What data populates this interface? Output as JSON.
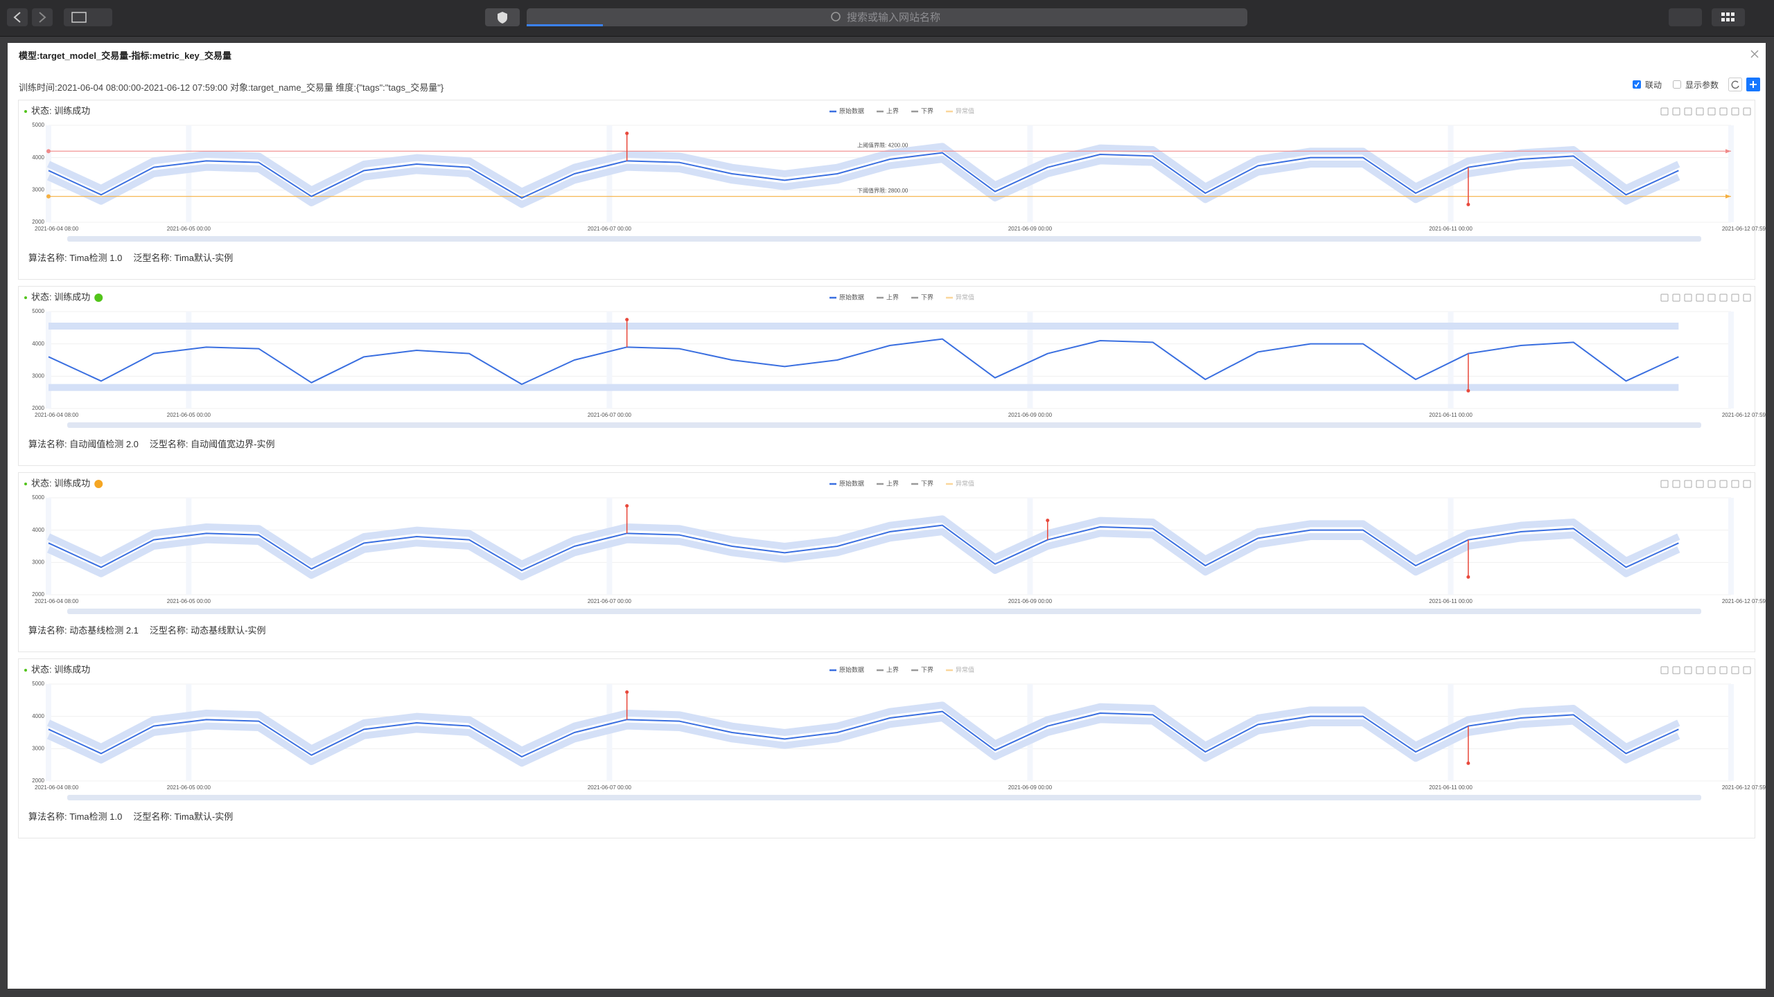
{
  "browser": {
    "search_placeholder": "搜索或输入网站名称"
  },
  "modal": {
    "title": "模型:target_model_交易量-指标:metric_key_交易量",
    "info": "训练时间:2021-06-04 08:00:00-2021-06-12 07:59:00 对象:target_name_交易量 维度:{\"tags\":\"tags_交易量\"}",
    "link_label": "联动",
    "show_params_label": "显示参数"
  },
  "chart_data": [
    {
      "type": "line",
      "status": "状态: 训练成功",
      "algorithm": "算法名称: Tima检测 1.0",
      "template": "泛型名称: Tima默认-实例",
      "x": [
        "2021-06-04 08:00",
        "2021-06-04 14:00",
        "2021-06-04 20:00",
        "2021-06-05 02:00",
        "2021-06-05 08:00",
        "2021-06-05 14:00",
        "2021-06-05 20:00",
        "2021-06-06 02:00",
        "2021-06-06 08:00",
        "2021-06-06 14:00",
        "2021-06-06 20:00",
        "2021-06-07 02:00",
        "2021-06-07 08:00",
        "2021-06-07 14:00",
        "2021-06-07 20:00",
        "2021-06-08 02:00",
        "2021-06-08 08:00",
        "2021-06-08 14:00",
        "2021-06-08 20:00",
        "2021-06-09 02:00",
        "2021-06-09 08:00",
        "2021-06-09 14:00",
        "2021-06-09 20:00",
        "2021-06-10 02:00",
        "2021-06-10 08:00",
        "2021-06-10 14:00",
        "2021-06-10 20:00",
        "2021-06-11 02:00",
        "2021-06-11 08:00",
        "2021-06-11 14:00",
        "2021-06-11 20:00",
        "2021-06-12 02:00"
      ],
      "xlim": [
        "2021-06-04 08:00",
        "2021-06-12 07:59"
      ],
      "xticks": [
        "2021-06-04 08:00",
        "2021-06-05 00:00",
        "2021-06-07 00:00",
        "2021-06-09 00:00",
        "2021-06-11 00:00",
        "2021-06-12 07:59"
      ],
      "ylim": [
        2000,
        5000
      ],
      "yticks": [
        2000,
        3000,
        4000,
        5000
      ],
      "grid": true,
      "thresholds": [
        {
          "label": "上阈值界限: 4200.00",
          "value": 4200,
          "color": "#f08a8a"
        },
        {
          "label": "下阈值界限: 2800.00",
          "value": 2800,
          "color": "#f5b041"
        }
      ],
      "series": [
        {
          "name": "原始数据",
          "color": "#3a6fe0",
          "values": [
            3600,
            2850,
            3700,
            3900,
            3850,
            2800,
            3600,
            3800,
            3700,
            2750,
            3500,
            3900,
            3850,
            3500,
            3300,
            3500,
            3950,
            4150,
            2950,
            3700,
            4100,
            4050,
            2900,
            3750,
            4000,
            4000,
            2900,
            3700,
            3950,
            4050,
            2850,
            3600
          ]
        },
        {
          "name": "上界",
          "color": "#d4e0f7",
          "values": [
            3800,
            3050,
            3900,
            4100,
            4050,
            3000,
            3800,
            4000,
            3900,
            2950,
            3700,
            4100,
            4050,
            3700,
            3500,
            3700,
            4150,
            4350,
            3150,
            3900,
            4300,
            4250,
            3100,
            3950,
            4200,
            4200,
            3100,
            3900,
            4150,
            4250,
            3050,
            3800
          ]
        },
        {
          "name": "下界",
          "color": "#d4e0f7",
          "values": [
            3400,
            2650,
            3500,
            3700,
            3650,
            2600,
            3400,
            3600,
            3500,
            2550,
            3300,
            3700,
            3650,
            3300,
            3100,
            3300,
            3750,
            3950,
            2750,
            3500,
            3900,
            3850,
            2700,
            3550,
            3800,
            3800,
            2700,
            3500,
            3750,
            3850,
            2650,
            3400
          ]
        },
        {
          "name": "异常值",
          "color": "#e8483b",
          "values": [
            null,
            null,
            null,
            null,
            null,
            null,
            null,
            null,
            null,
            null,
            null,
            4750,
            null,
            null,
            null,
            null,
            null,
            null,
            null,
            null,
            null,
            null,
            null,
            null,
            null,
            null,
            null,
            2550,
            null,
            null,
            null,
            null
          ]
        }
      ]
    },
    {
      "type": "line",
      "status": "状态: 训练成功",
      "status_color": "#52c41a",
      "algorithm": "算法名称: 自动阈值检测 2.0",
      "template": "泛型名称: 自动阈值宽边界-实例",
      "x": [
        "2021-06-04 08:00",
        "2021-06-04 14:00",
        "2021-06-04 20:00",
        "2021-06-05 02:00",
        "2021-06-05 08:00",
        "2021-06-05 14:00",
        "2021-06-05 20:00",
        "2021-06-06 02:00",
        "2021-06-06 08:00",
        "2021-06-06 14:00",
        "2021-06-06 20:00",
        "2021-06-07 02:00",
        "2021-06-07 08:00",
        "2021-06-07 14:00",
        "2021-06-07 20:00",
        "2021-06-08 02:00",
        "2021-06-08 08:00",
        "2021-06-08 14:00",
        "2021-06-08 20:00",
        "2021-06-09 02:00",
        "2021-06-09 08:00",
        "2021-06-09 14:00",
        "2021-06-09 20:00",
        "2021-06-10 02:00",
        "2021-06-10 08:00",
        "2021-06-10 14:00",
        "2021-06-10 20:00",
        "2021-06-11 02:00",
        "2021-06-11 08:00",
        "2021-06-11 14:00",
        "2021-06-11 20:00",
        "2021-06-12 02:00"
      ],
      "xlim": [
        "2021-06-04 08:00",
        "2021-06-12 07:59"
      ],
      "xticks": [
        "2021-06-04 08:00",
        "2021-06-05 00:00",
        "2021-06-07 00:00",
        "2021-06-09 00:00",
        "2021-06-11 00:00",
        "2021-06-12 07:59"
      ],
      "ylim": [
        2000,
        5000
      ],
      "yticks": [
        2000,
        3000,
        4000,
        5000
      ],
      "grid": true,
      "series": [
        {
          "name": "原始数据",
          "color": "#3a6fe0",
          "values": [
            3600,
            2850,
            3700,
            3900,
            3850,
            2800,
            3600,
            3800,
            3700,
            2750,
            3500,
            3900,
            3850,
            3500,
            3300,
            3500,
            3950,
            4150,
            2950,
            3700,
            4100,
            4050,
            2900,
            3750,
            4000,
            4000,
            2900,
            3700,
            3950,
            4050,
            2850,
            3600
          ]
        },
        {
          "name": "上界",
          "color": "#d4e0f7",
          "values": [
            4550,
            4550,
            4550,
            4550,
            4550,
            4550,
            4550,
            4550,
            4550,
            4550,
            4550,
            4550,
            4550,
            4550,
            4550,
            4550,
            4550,
            4550,
            4550,
            4550,
            4550,
            4550,
            4550,
            4550,
            4550,
            4550,
            4550,
            4550,
            4550,
            4550,
            4550,
            4550
          ]
        },
        {
          "name": "下界",
          "color": "#d4e0f7",
          "values": [
            2650,
            2650,
            2650,
            2650,
            2650,
            2650,
            2650,
            2650,
            2650,
            2650,
            2650,
            2650,
            2650,
            2650,
            2650,
            2650,
            2650,
            2650,
            2650,
            2650,
            2650,
            2650,
            2650,
            2650,
            2650,
            2650,
            2650,
            2650,
            2650,
            2650,
            2650,
            2650
          ]
        },
        {
          "name": "异常值",
          "color": "#e8483b",
          "values": [
            null,
            null,
            null,
            null,
            null,
            null,
            null,
            null,
            null,
            null,
            null,
            4750,
            null,
            null,
            null,
            null,
            null,
            null,
            null,
            null,
            null,
            null,
            null,
            null,
            null,
            null,
            null,
            2550,
            null,
            null,
            null,
            null
          ]
        }
      ]
    },
    {
      "type": "line",
      "status": "状态: 训练成功",
      "status_color": "#f5a623",
      "algorithm": "算法名称: 动态基线检测 2.1",
      "template": "泛型名称: 动态基线默认-实例",
      "x": [
        "2021-06-04 08:00",
        "2021-06-04 14:00",
        "2021-06-04 20:00",
        "2021-06-05 02:00",
        "2021-06-05 08:00",
        "2021-06-05 14:00",
        "2021-06-05 20:00",
        "2021-06-06 02:00",
        "2021-06-06 08:00",
        "2021-06-06 14:00",
        "2021-06-06 20:00",
        "2021-06-07 02:00",
        "2021-06-07 08:00",
        "2021-06-07 14:00",
        "2021-06-07 20:00",
        "2021-06-08 02:00",
        "2021-06-08 08:00",
        "2021-06-08 14:00",
        "2021-06-08 20:00",
        "2021-06-09 02:00",
        "2021-06-09 08:00",
        "2021-06-09 14:00",
        "2021-06-09 20:00",
        "2021-06-10 02:00",
        "2021-06-10 08:00",
        "2021-06-10 14:00",
        "2021-06-10 20:00",
        "2021-06-11 02:00",
        "2021-06-11 08:00",
        "2021-06-11 14:00",
        "2021-06-11 20:00",
        "2021-06-12 02:00"
      ],
      "xlim": [
        "2021-06-04 08:00",
        "2021-06-12 07:59"
      ],
      "xticks": [
        "2021-06-04 08:00",
        "2021-06-05 00:00",
        "2021-06-07 00:00",
        "2021-06-09 00:00",
        "2021-06-11 00:00",
        "2021-06-12 07:59"
      ],
      "ylim": [
        2000,
        5000
      ],
      "yticks": [
        2000,
        3000,
        4000,
        5000
      ],
      "grid": true,
      "series": [
        {
          "name": "原始数据",
          "color": "#3a6fe0",
          "values": [
            3600,
            2850,
            3700,
            3900,
            3850,
            2800,
            3600,
            3800,
            3700,
            2750,
            3500,
            3900,
            3850,
            3500,
            3300,
            3500,
            3950,
            4150,
            2950,
            3700,
            4100,
            4050,
            2900,
            3750,
            4000,
            4000,
            2900,
            3700,
            3950,
            4050,
            2850,
            3600
          ]
        },
        {
          "name": "上界",
          "color": "#d4e0f7",
          "values": [
            3800,
            3050,
            3900,
            4100,
            4050,
            3000,
            3800,
            4000,
            3900,
            2950,
            3700,
            4100,
            4050,
            3700,
            3500,
            3700,
            4150,
            4350,
            3150,
            3900,
            4300,
            4250,
            3100,
            3950,
            4200,
            4200,
            3100,
            3900,
            4150,
            4250,
            3050,
            3800
          ]
        },
        {
          "name": "下界",
          "color": "#d4e0f7",
          "values": [
            3400,
            2650,
            3500,
            3700,
            3650,
            2600,
            3400,
            3600,
            3500,
            2550,
            3300,
            3700,
            3650,
            3300,
            3100,
            3300,
            3750,
            3950,
            2750,
            3500,
            3900,
            3850,
            2700,
            3550,
            3800,
            3800,
            2700,
            3500,
            3750,
            3850,
            2650,
            3400
          ]
        },
        {
          "name": "异常值",
          "color": "#e8483b",
          "values": [
            null,
            null,
            null,
            null,
            null,
            null,
            null,
            null,
            null,
            null,
            null,
            4750,
            null,
            null,
            null,
            null,
            null,
            null,
            null,
            4300,
            null,
            null,
            null,
            null,
            null,
            null,
            null,
            2550,
            null,
            null,
            null,
            null
          ]
        }
      ]
    },
    {
      "type": "line",
      "status": "状态: 训练成功",
      "algorithm": "算法名称: Tima检测 1.0",
      "template": "泛型名称: Tima默认-实例",
      "x": [
        "2021-06-04 08:00",
        "2021-06-04 14:00",
        "2021-06-04 20:00",
        "2021-06-05 02:00",
        "2021-06-05 08:00",
        "2021-06-05 14:00",
        "2021-06-05 20:00",
        "2021-06-06 02:00",
        "2021-06-06 08:00",
        "2021-06-06 14:00",
        "2021-06-06 20:00",
        "2021-06-07 02:00",
        "2021-06-07 08:00",
        "2021-06-07 14:00",
        "2021-06-07 20:00",
        "2021-06-08 02:00",
        "2021-06-08 08:00",
        "2021-06-08 14:00",
        "2021-06-08 20:00",
        "2021-06-09 02:00",
        "2021-06-09 08:00",
        "2021-06-09 14:00",
        "2021-06-09 20:00",
        "2021-06-10 02:00",
        "2021-06-10 08:00",
        "2021-06-10 14:00",
        "2021-06-10 20:00",
        "2021-06-11 02:00",
        "2021-06-11 08:00",
        "2021-06-11 14:00",
        "2021-06-11 20:00",
        "2021-06-12 02:00"
      ],
      "xlim": [
        "2021-06-04 08:00",
        "2021-06-12 07:59"
      ],
      "xticks": [
        "2021-06-04 08:00",
        "2021-06-05 00:00",
        "2021-06-07 00:00",
        "2021-06-09 00:00",
        "2021-06-11 00:00",
        "2021-06-12 07:59"
      ],
      "ylim": [
        2000,
        5000
      ],
      "yticks": [
        2000,
        3000,
        4000,
        5000
      ],
      "grid": true,
      "series": [
        {
          "name": "原始数据",
          "color": "#3a6fe0",
          "values": [
            3600,
            2850,
            3700,
            3900,
            3850,
            2800,
            3600,
            3800,
            3700,
            2750,
            3500,
            3900,
            3850,
            3500,
            3300,
            3500,
            3950,
            4150,
            2950,
            3700,
            4100,
            4050,
            2900,
            3750,
            4000,
            4000,
            2900,
            3700,
            3950,
            4050,
            2850,
            3600
          ]
        },
        {
          "name": "上界",
          "color": "#d4e0f7",
          "values": [
            3800,
            3050,
            3900,
            4100,
            4050,
            3000,
            3800,
            4000,
            3900,
            2950,
            3700,
            4100,
            4050,
            3700,
            3500,
            3700,
            4150,
            4350,
            3150,
            3900,
            4300,
            4250,
            3100,
            3950,
            4200,
            4200,
            3100,
            3900,
            4150,
            4250,
            3050,
            3800
          ]
        },
        {
          "name": "下界",
          "color": "#d4e0f7",
          "values": [
            3400,
            2650,
            3500,
            3700,
            3650,
            2600,
            3400,
            3600,
            3500,
            2550,
            3300,
            3700,
            3650,
            3300,
            3100,
            3300,
            3750,
            3950,
            2750,
            3500,
            3900,
            3850,
            2700,
            3550,
            3800,
            3800,
            2700,
            3500,
            3750,
            3850,
            2650,
            3400
          ]
        },
        {
          "name": "异常值",
          "color": "#e8483b",
          "values": [
            null,
            null,
            null,
            null,
            null,
            null,
            null,
            null,
            null,
            null,
            null,
            4750,
            null,
            null,
            null,
            null,
            null,
            null,
            null,
            null,
            null,
            null,
            null,
            null,
            null,
            null,
            null,
            2550,
            null,
            null,
            null,
            null
          ]
        }
      ]
    }
  ]
}
